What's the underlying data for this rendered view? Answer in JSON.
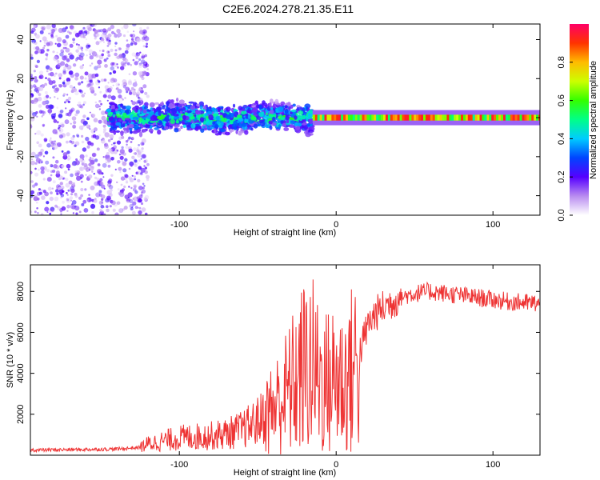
{
  "title": "C2E6.2024.278.21.35.E11",
  "chart_data": [
    {
      "type": "heatmap",
      "xlabel": "Height of straight line (km)",
      "ylabel": "Frequency (Hz)",
      "xlim": [
        -195,
        130
      ],
      "ylim": [
        -50,
        48
      ],
      "xticks": [
        -100,
        0,
        100
      ],
      "xtick_labels": [
        "-100",
        "0",
        "100"
      ],
      "yticks": [
        -40,
        -20,
        0,
        20,
        40
      ],
      "ytick_labels": [
        "-40",
        "-20",
        "0",
        "20",
        "40"
      ],
      "colorbar": {
        "label": "Normalized spectral amplitude",
        "range": [
          0,
          1
        ],
        "ticks": [
          0.0,
          0.2,
          0.4,
          0.6,
          0.8
        ],
        "tick_labels": [
          "0.0",
          "0.2",
          "0.4",
          "0.6",
          "0.8"
        ]
      },
      "regions": [
        {
          "x": [
            -195,
            -120
          ],
          "freq": [
            -50,
            48
          ],
          "amplitude": 0.15,
          "description": "noise"
        },
        {
          "x": [
            -145,
            -15
          ],
          "freq": [
            -8,
            8
          ],
          "amplitude": 0.35,
          "description": "signal broadening"
        },
        {
          "x": [
            -15,
            130
          ],
          "freq": [
            -1.5,
            1.5
          ],
          "amplitude": 0.9,
          "description": "carrier line"
        }
      ]
    },
    {
      "type": "line",
      "xlabel": "Height of straight line (km)",
      "ylabel": "SNR (10 * v/v)",
      "xlim": [
        -195,
        130
      ],
      "ylim": [
        0,
        9300
      ],
      "xticks": [
        -100,
        0,
        100
      ],
      "xtick_labels": [
        "-100",
        "0",
        "100"
      ],
      "yticks": [
        2000,
        4000,
        6000,
        8000
      ],
      "ytick_labels": [
        "2000",
        "4000",
        "6000",
        "8000"
      ],
      "series": [
        {
          "name": "SNR",
          "color": "#ee3333",
          "x": [
            -195,
            -180,
            -160,
            -140,
            -125,
            -120,
            -110,
            -100,
            -90,
            -80,
            -70,
            -60,
            -50,
            -45,
            -40,
            -35,
            -30,
            -25,
            -20,
            -15,
            -10,
            -5,
            0,
            5,
            10,
            15,
            20,
            25,
            30,
            40,
            50,
            60,
            70,
            80,
            90,
            100,
            110,
            120,
            130
          ],
          "y": [
            250,
            260,
            280,
            300,
            380,
            550,
            700,
            850,
            900,
            950,
            1050,
            1250,
            1650,
            2000,
            2300,
            2700,
            3200,
            3700,
            4300,
            4300,
            3700,
            3500,
            3800,
            3600,
            4100,
            5000,
            6300,
            6900,
            7200,
            7700,
            7900,
            8000,
            7900,
            7800,
            7700,
            7600,
            7500,
            7450,
            7400
          ]
        }
      ]
    }
  ]
}
